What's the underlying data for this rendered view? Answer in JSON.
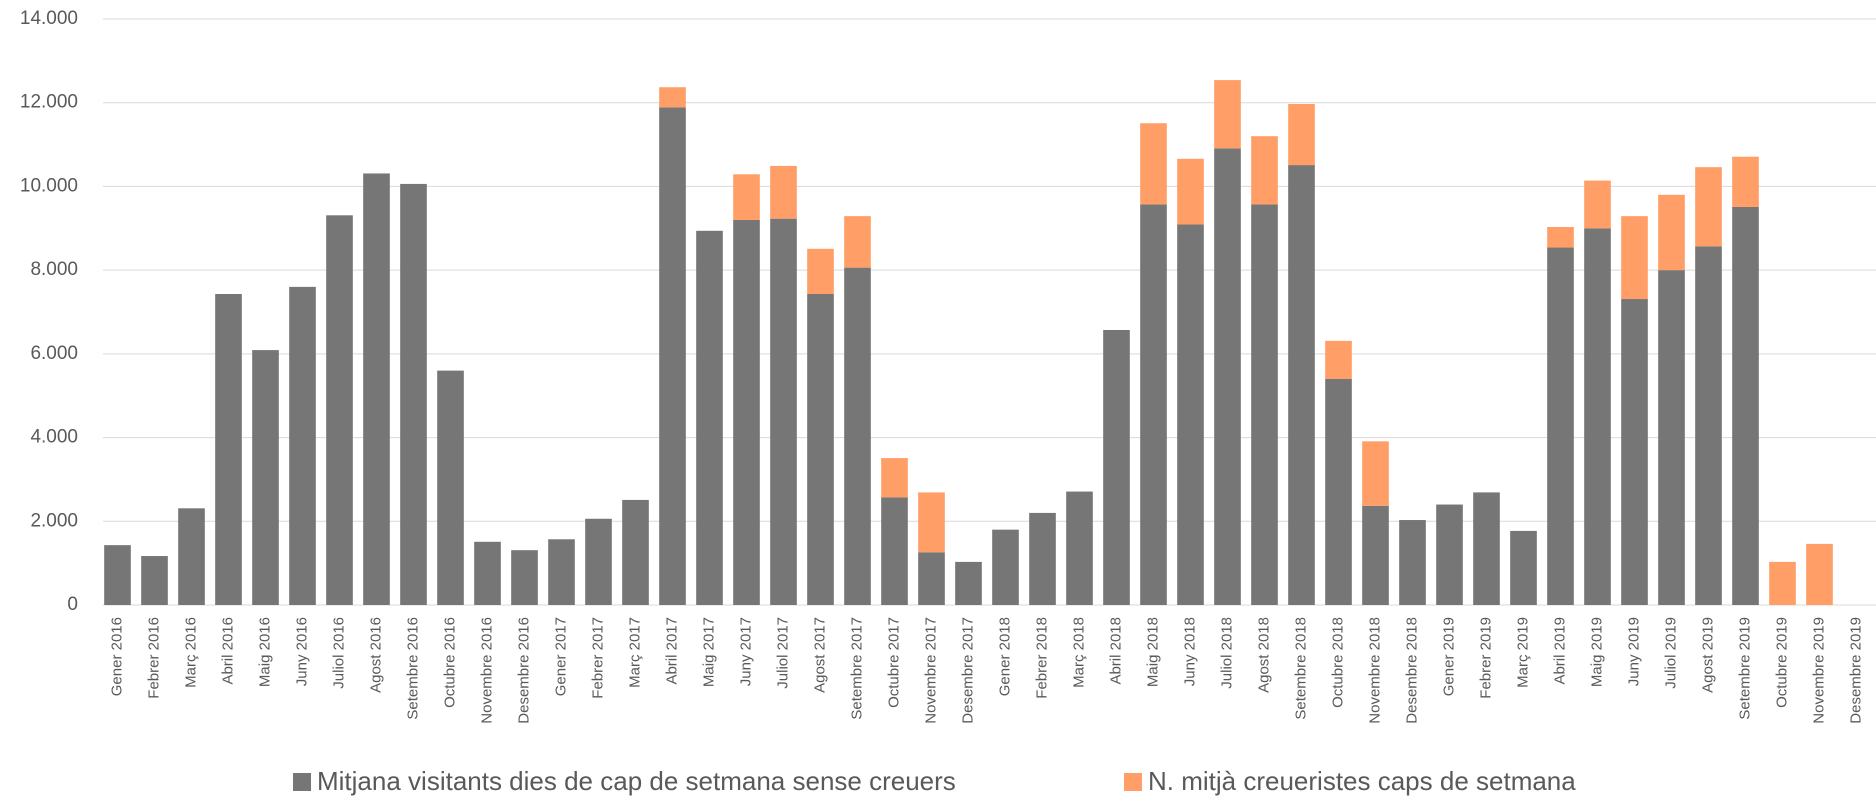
{
  "chart_data": {
    "type": "stacked_bar",
    "categories": [
      "Gener 2016",
      "Febrer 2016",
      "Març 2016",
      "Abril 2016",
      "Maig 2016",
      "Juny 2016",
      "Juliol 2016",
      "Agost 2016",
      "Setembre 2016",
      "Octubre 2016",
      "Novembre 2016",
      "Desembre 2016",
      "Gener 2017",
      "Febrer 2017",
      "Març 2017",
      "Abril 2017",
      "Maig 2017",
      "Juny 2017",
      "Juliol 2017",
      "Agost 2017",
      "Setembre 2017",
      "Octubre 2017",
      "Novembre 2017",
      "Desembre 2017",
      "Gener 2018",
      "Febrer 2018",
      "Març 2018",
      "Abril 2018",
      "Maig 2018",
      "Juny 2018",
      "Juliol 2018",
      "Agost 2018",
      "Setembre 2018",
      "Octubre 2018",
      "Novembre 2018",
      "Desembre 2018",
      "Gener 2019",
      "Febrer 2019",
      "Març 2019",
      "Abril 2019",
      "Maig 2019",
      "Juny 2019",
      "Juliol 2019",
      "Agost 2019",
      "Setembre 2019",
      "Octubre 2019",
      "Novembre 2019",
      "Desembre 2019"
    ],
    "series": [
      {
        "name": "Mitjana visitants dies de cap de setmana sense creuers",
        "color": "#767676",
        "values": [
          1430,
          1170,
          2310,
          7430,
          6090,
          7600,
          9310,
          10310,
          10060,
          5600,
          1510,
          1310,
          1570,
          2060,
          2510,
          11890,
          8940,
          9200,
          9230,
          7430,
          8060,
          2570,
          1260,
          1030,
          1800,
          2200,
          2710,
          6570,
          9570,
          9090,
          10910,
          9570,
          10510,
          5400,
          2370,
          2030,
          2400,
          2690,
          1770,
          8540,
          9000,
          7310,
          8000,
          8570,
          9510,
          null,
          null,
          null
        ]
      },
      {
        "name": "N. mitjà creueristes caps de setmana",
        "color": "#ff9e66",
        "values": [
          null,
          null,
          null,
          null,
          null,
          null,
          null,
          null,
          null,
          null,
          null,
          null,
          null,
          null,
          null,
          480,
          null,
          1090,
          1260,
          1080,
          1230,
          940,
          1430,
          null,
          null,
          null,
          null,
          null,
          1940,
          1570,
          1630,
          1630,
          1460,
          910,
          1540,
          null,
          null,
          null,
          null,
          490,
          1140,
          1980,
          1800,
          1890,
          1200,
          1030,
          1460,
          null
        ]
      }
    ],
    "ylim": [
      0,
      14000
    ],
    "yticks": [
      0,
      {
        "value": 2000,
        "label": "2.000"
      },
      {
        "value": 4000,
        "label": "4.000"
      },
      {
        "value": 6000,
        "label": "6.000"
      },
      {
        "value": 8000,
        "label": "8.000"
      },
      {
        "value": 10000,
        "label": "10.000"
      },
      {
        "value": 12000,
        "label": "12.000"
      },
      {
        "value": 14000,
        "label": "14.000"
      }
    ],
    "grid": true,
    "legend": "bottom"
  }
}
